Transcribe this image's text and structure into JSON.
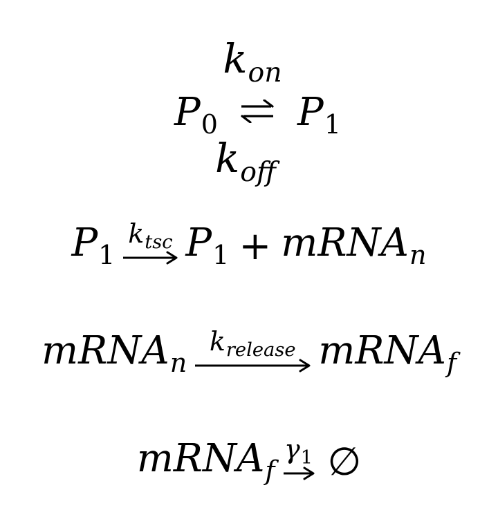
{
  "equations": {
    "switching": {
      "rate_on": "k",
      "rate_on_sub": "on",
      "left_species": "P",
      "left_sub": "0",
      "right_species": "P",
      "right_sub": "1",
      "rate_off": "k",
      "rate_off_sub": "off"
    },
    "transcription": {
      "reactant": "P",
      "reactant_sub": "1",
      "rate": "k",
      "rate_sub": "tsc",
      "product1": "P",
      "product1_sub": "1",
      "plus": "+",
      "product2": "mRNA",
      "product2_sub": "n"
    },
    "release": {
      "reactant": "mRNA",
      "reactant_sub": "n",
      "rate": "k",
      "rate_sub": "release",
      "product": "mRNA",
      "product_sub": "f"
    },
    "degradation": {
      "reactant": "mRNA",
      "reactant_sub": "f",
      "rate": "γ",
      "rate_sub": "1",
      "product": "∅"
    }
  }
}
